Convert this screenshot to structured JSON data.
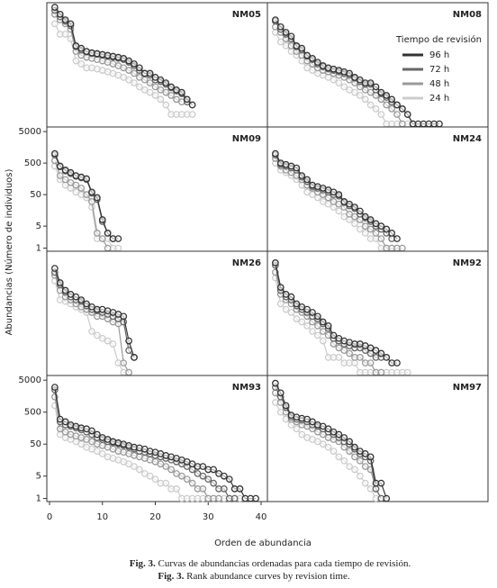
{
  "y_label": "Abundancias (Número de individuos)",
  "x_label": "Orden de abundancia",
  "caption": [
    {
      "label": "Fig. 3.",
      "text": "Curvas de abundancias ordenadas para cada tiempo de revisión."
    },
    {
      "label": "Fig. 3.",
      "text": "Rank abundance curves by revision time."
    }
  ],
  "legend": {
    "title": "Tiempo de revisión",
    "series": [
      {
        "name": "96 h",
        "color": "#333333"
      },
      {
        "name": "72 h",
        "color": "#666666"
      },
      {
        "name": "48 h",
        "color": "#999999"
      },
      {
        "name": "24 h",
        "color": "#cccccc"
      }
    ]
  },
  "chart_data": [
    {
      "type": "line",
      "title": "NM05",
      "log_y": true,
      "xlim": [
        0,
        40
      ],
      "ylim": [
        0.8,
        7000
      ],
      "series": [
        {
          "values": [
            5000,
            3000,
            2000,
            1500,
            300,
            250,
            200,
            180,
            170,
            160,
            150,
            140,
            130,
            120,
            100,
            80,
            60,
            40,
            40,
            30,
            25,
            20,
            15,
            12,
            10,
            6,
            4
          ]
        },
        {
          "values": [
            4000,
            2500,
            1800,
            1300,
            280,
            220,
            190,
            170,
            160,
            150,
            140,
            130,
            120,
            110,
            90,
            70,
            50,
            40,
            35,
            25,
            22,
            18,
            14,
            11,
            9,
            5
          ]
        },
        {
          "values": [
            3000,
            2000,
            1500,
            1000,
            200,
            150,
            130,
            120,
            110,
            100,
            90,
            80,
            70,
            60,
            50,
            40,
            30,
            25,
            20,
            15,
            12,
            10,
            8,
            6,
            5
          ]
        },
        {
          "values": [
            1500,
            700,
            700,
            500,
            100,
            80,
            60,
            60,
            55,
            50,
            45,
            40,
            35,
            30,
            25,
            20,
            15,
            12,
            10,
            8,
            6,
            4,
            2,
            2,
            2,
            2,
            2
          ]
        }
      ]
    },
    {
      "type": "line",
      "title": "NM08",
      "log_y": true,
      "xlim": [
        0,
        40
      ],
      "ylim": [
        0.8,
        7000
      ],
      "show_legend": true,
      "series": [
        {
          "values": [
            2000,
            1200,
            800,
            600,
            300,
            250,
            150,
            120,
            90,
            70,
            60,
            55,
            50,
            45,
            40,
            30,
            25,
            20,
            20,
            15,
            10,
            8,
            6,
            4,
            3,
            2,
            1,
            1,
            1,
            1,
            1,
            1
          ]
        },
        {
          "values": [
            1800,
            1000,
            700,
            500,
            280,
            220,
            140,
            110,
            80,
            65,
            55,
            50,
            45,
            40,
            35,
            28,
            22,
            18,
            18,
            12,
            9,
            7,
            5,
            4,
            3,
            2,
            1
          ]
        },
        {
          "values": [
            1200,
            800,
            500,
            300,
            200,
            150,
            100,
            80,
            60,
            50,
            45,
            40,
            35,
            30,
            25,
            20,
            15,
            12,
            10,
            8,
            6,
            4,
            3,
            2,
            1
          ]
        },
        {
          "values": [
            800,
            400,
            300,
            200,
            150,
            100,
            60,
            50,
            40,
            35,
            30,
            25,
            20,
            15,
            12,
            10,
            8,
            6,
            4,
            3,
            2,
            1,
            1,
            1,
            1,
            1,
            1
          ]
        }
      ]
    },
    {
      "type": "line",
      "title": "NM09",
      "log_y": true,
      "xlim": [
        0,
        40
      ],
      "ylim": [
        0.8,
        7000
      ],
      "yticks": [
        1,
        5,
        50,
        500,
        5000
      ],
      "series": [
        {
          "values": [
            1000,
            400,
            300,
            250,
            200,
            180,
            160,
            60,
            40,
            8,
            3,
            2,
            2
          ]
        },
        {
          "values": [
            900,
            380,
            280,
            230,
            190,
            170,
            150,
            55,
            35,
            7,
            3,
            2
          ]
        },
        {
          "values": [
            600,
            200,
            150,
            120,
            100,
            80,
            50,
            30,
            3,
            2,
            1
          ]
        },
        {
          "values": [
            400,
            150,
            100,
            80,
            60,
            50,
            40,
            20,
            2,
            2,
            2,
            1,
            1
          ]
        }
      ]
    },
    {
      "type": "line",
      "title": "NM24",
      "log_y": true,
      "xlim": [
        0,
        40
      ],
      "ylim": [
        0.8,
        7000
      ],
      "series": [
        {
          "values": [
            1000,
            500,
            450,
            400,
            350,
            200,
            150,
            100,
            90,
            80,
            70,
            60,
            50,
            30,
            25,
            20,
            15,
            10,
            8,
            6,
            5,
            4,
            3,
            2
          ]
        },
        {
          "values": [
            900,
            450,
            400,
            350,
            300,
            180,
            130,
            90,
            80,
            70,
            60,
            50,
            45,
            28,
            22,
            18,
            12,
            9,
            7,
            5,
            4,
            3,
            2
          ]
        },
        {
          "values": [
            700,
            400,
            300,
            250,
            200,
            150,
            100,
            80,
            60,
            50,
            40,
            30,
            25,
            20,
            12,
            10,
            8,
            5,
            4,
            3,
            2,
            1,
            1,
            1,
            1
          ]
        },
        {
          "values": [
            500,
            300,
            250,
            200,
            150,
            100,
            60,
            50,
            40,
            30,
            25,
            20,
            15,
            10,
            8,
            6,
            4,
            3,
            2,
            2,
            1,
            1,
            1,
            1
          ]
        }
      ]
    },
    {
      "type": "line",
      "title": "NM26",
      "log_y": true,
      "xlim": [
        0,
        40
      ],
      "ylim": [
        0.8,
        7000
      ],
      "series": [
        {
          "values": [
            2000,
            700,
            400,
            300,
            250,
            200,
            150,
            120,
            100,
            100,
            90,
            80,
            70,
            60,
            10,
            3
          ]
        },
        {
          "values": [
            1500,
            600,
            350,
            250,
            200,
            180,
            130,
            100,
            90,
            80,
            70,
            60,
            50,
            40,
            5,
            3
          ]
        },
        {
          "values": [
            1200,
            400,
            250,
            200,
            150,
            120,
            100,
            80,
            60,
            60,
            50,
            40,
            35,
            2,
            1
          ]
        },
        {
          "values": [
            800,
            200,
            180,
            150,
            120,
            100,
            80,
            20,
            15,
            12,
            10,
            8,
            2,
            1,
            1
          ]
        }
      ]
    },
    {
      "type": "line",
      "title": "NM92",
      "log_y": true,
      "xlim": [
        0,
        40
      ],
      "ylim": [
        0.8,
        7000
      ],
      "series": [
        {
          "values": [
            3000,
            500,
            300,
            250,
            150,
            120,
            100,
            80,
            60,
            40,
            30,
            15,
            12,
            10,
            9,
            8,
            8,
            7,
            6,
            5,
            4,
            3,
            2,
            2
          ]
        },
        {
          "values": [
            2500,
            400,
            250,
            200,
            130,
            100,
            80,
            60,
            50,
            35,
            25,
            12,
            10,
            8,
            7,
            6,
            6,
            5,
            4,
            3,
            3
          ]
        },
        {
          "values": [
            1500,
            300,
            200,
            150,
            100,
            80,
            60,
            40,
            30,
            20,
            15,
            8,
            6,
            5,
            4,
            3,
            3,
            2,
            2,
            1,
            1
          ]
        },
        {
          "values": [
            1000,
            150,
            100,
            80,
            50,
            40,
            30,
            20,
            15,
            10,
            3,
            3,
            3,
            2,
            2,
            2,
            1,
            1,
            1,
            1,
            1,
            1,
            1,
            1,
            1,
            1
          ]
        }
      ]
    },
    {
      "type": "line",
      "title": "NM93",
      "log_y": true,
      "xlim": [
        0,
        40
      ],
      "ylim": [
        0.8,
        7000
      ],
      "yticks": [
        1,
        5,
        50,
        500,
        5000
      ],
      "xticks": [
        0,
        10,
        20,
        30,
        40
      ],
      "series": [
        {
          "values": [
            3000,
            300,
            250,
            200,
            180,
            160,
            150,
            130,
            100,
            80,
            70,
            60,
            55,
            50,
            45,
            40,
            38,
            35,
            30,
            28,
            25,
            22,
            20,
            18,
            16,
            14,
            12,
            10,
            10,
            8,
            8,
            6,
            5,
            4,
            2,
            2,
            1,
            1,
            1
          ]
        },
        {
          "values": [
            2500,
            250,
            200,
            180,
            160,
            140,
            120,
            100,
            80,
            70,
            60,
            55,
            50,
            45,
            40,
            35,
            30,
            28,
            25,
            22,
            20,
            18,
            16,
            14,
            12,
            10,
            8,
            6,
            5,
            4,
            3,
            2,
            2,
            1,
            1
          ]
        },
        {
          "values": [
            1500,
            150,
            120,
            100,
            90,
            80,
            70,
            60,
            50,
            45,
            40,
            35,
            30,
            28,
            25,
            22,
            20,
            18,
            16,
            14,
            12,
            10,
            8,
            6,
            5,
            4,
            3,
            2,
            2,
            1,
            1,
            1
          ]
        },
        {
          "values": [
            800,
            100,
            80,
            70,
            60,
            50,
            40,
            35,
            30,
            25,
            20,
            18,
            16,
            14,
            12,
            10,
            8,
            6,
            5,
            4,
            3,
            3,
            2,
            2,
            1,
            1,
            1,
            1,
            1,
            1,
            1,
            1,
            1,
            1,
            1,
            1,
            1,
            1
          ]
        }
      ]
    },
    {
      "type": "line",
      "title": "NM97",
      "log_y": true,
      "xlim": [
        0,
        40
      ],
      "ylim": [
        0.8,
        7000
      ],
      "series": [
        {
          "values": [
            4000,
            2000,
            800,
            400,
            350,
            320,
            300,
            250,
            200,
            180,
            150,
            120,
            100,
            80,
            60,
            40,
            30,
            25,
            20,
            3,
            3,
            1
          ]
        },
        {
          "values": [
            3000,
            1500,
            700,
            350,
            300,
            280,
            250,
            200,
            180,
            150,
            120,
            100,
            80,
            60,
            50,
            35,
            25,
            20,
            15,
            2,
            1
          ]
        },
        {
          "values": [
            2000,
            1000,
            500,
            300,
            250,
            200,
            180,
            150,
            120,
            100,
            80,
            70,
            60,
            40,
            30,
            20,
            15,
            10,
            8,
            2,
            1
          ]
        },
        {
          "values": [
            1000,
            500,
            300,
            200,
            150,
            100,
            80,
            70,
            60,
            50,
            40,
            30,
            20,
            15,
            10,
            8,
            5,
            3,
            2,
            1,
            1,
            1
          ]
        }
      ]
    }
  ]
}
